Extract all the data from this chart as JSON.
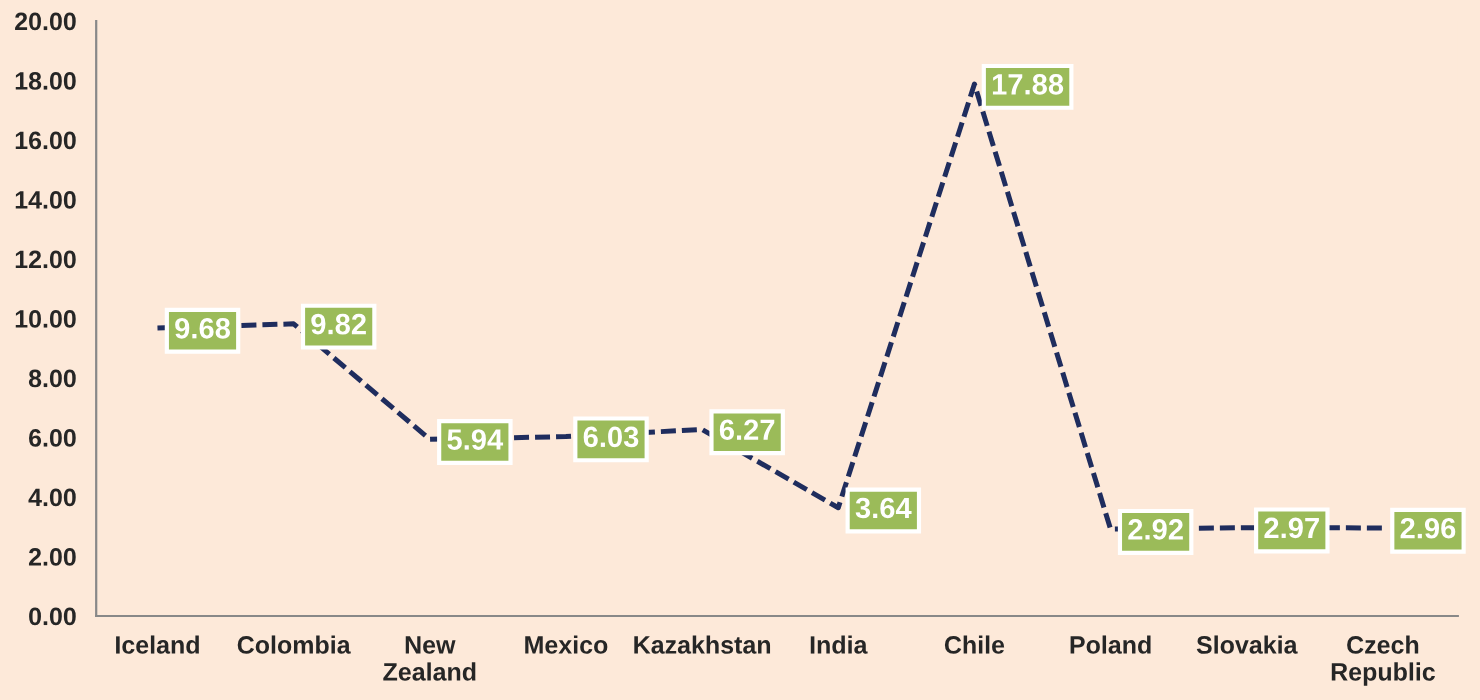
{
  "chart_data": {
    "type": "line",
    "categories": [
      "Iceland",
      "Colombia",
      "New Zealand",
      "Mexico",
      "Kazakhstan",
      "India",
      "Chile",
      "Poland",
      "Slovakia",
      "Czech Republic"
    ],
    "series": [
      {
        "color": "#1f2d5e",
        "values": [
          9.68,
          9.82,
          5.94,
          6.03,
          6.27,
          3.64,
          17.88,
          2.92,
          2.97,
          2.96
        ]
      }
    ],
    "ylim": [
      0,
      20
    ],
    "yticks": [
      {
        "value": 0,
        "label": "0.00"
      },
      {
        "value": 2,
        "label": "2.00"
      },
      {
        "value": 4,
        "label": "4.00"
      },
      {
        "value": 6,
        "label": "6.00"
      },
      {
        "value": 8,
        "label": "8.00"
      },
      {
        "value": 10,
        "label": "10.00"
      },
      {
        "value": 12,
        "label": "12.00"
      },
      {
        "value": 14,
        "label": "14.00"
      },
      {
        "value": 16,
        "label": "16.00"
      },
      {
        "value": 18,
        "label": "18.00"
      },
      {
        "value": 20,
        "label": "20.00"
      }
    ],
    "line_style": "dashed",
    "marker": "none",
    "grid": false,
    "data_labels": true
  }
}
